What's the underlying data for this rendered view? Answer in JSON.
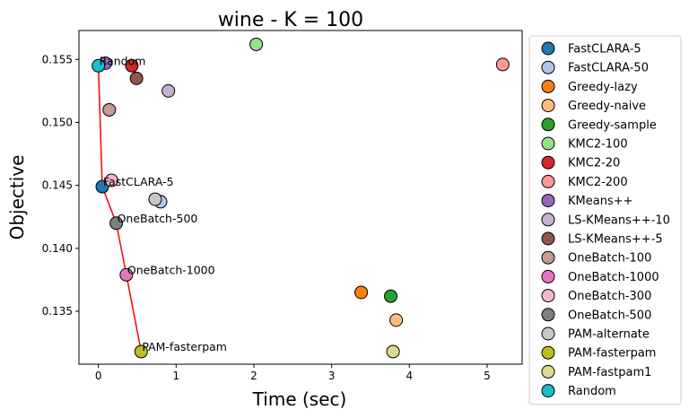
{
  "chart_data": {
    "type": "scatter",
    "title": "wine - K = 100",
    "xlabel": "Time (sec)",
    "ylabel": "Objective",
    "xlim": [
      -0.25,
      5.45
    ],
    "ylim": [
      0.1308,
      0.1573
    ],
    "xticks": [
      0,
      1,
      2,
      3,
      4,
      5
    ],
    "xtick_labels": [
      "0",
      "1",
      "2",
      "3",
      "4",
      "5"
    ],
    "yticks": [
      0.135,
      0.14,
      0.145,
      0.15,
      0.155
    ],
    "ytick_labels": [
      "0.135",
      "0.140",
      "0.145",
      "0.150",
      "0.155"
    ],
    "grid": false,
    "legend_position": "outside-right",
    "series": [
      {
        "name": "FastCLARA-5",
        "color": "#1f77b4",
        "points": [
          [
            0.05,
            0.1449
          ]
        ]
      },
      {
        "name": "FastCLARA-50",
        "color": "#aec7e8",
        "points": [
          [
            0.8,
            0.1437
          ]
        ]
      },
      {
        "name": "Greedy-lazy",
        "color": "#ff7f0e",
        "points": [
          [
            3.38,
            0.1365
          ]
        ]
      },
      {
        "name": "Greedy-naive",
        "color": "#ffbb78",
        "points": [
          [
            3.83,
            0.1343
          ]
        ]
      },
      {
        "name": "Greedy-sample",
        "color": "#2ca02c",
        "points": [
          [
            3.76,
            0.1362
          ]
        ]
      },
      {
        "name": "KMC2-100",
        "color": "#98df8a",
        "points": [
          [
            2.03,
            0.1562
          ]
        ]
      },
      {
        "name": "KMC2-20",
        "color": "#d62728",
        "points": [
          [
            0.43,
            0.1545
          ]
        ]
      },
      {
        "name": "KMC2-200",
        "color": "#ff9896",
        "points": [
          [
            5.2,
            0.1546
          ]
        ]
      },
      {
        "name": "KMeans++",
        "color": "#9467bd",
        "points": [
          [
            0.09,
            0.1547
          ]
        ]
      },
      {
        "name": "LS-KMeans++-10",
        "color": "#c5b0d5",
        "points": [
          [
            0.9,
            0.1525
          ]
        ]
      },
      {
        "name": "LS-KMeans++-5",
        "color": "#8c564b",
        "points": [
          [
            0.49,
            0.1535
          ]
        ]
      },
      {
        "name": "OneBatch-100",
        "color": "#c49c94",
        "points": [
          [
            0.14,
            0.151
          ]
        ]
      },
      {
        "name": "OneBatch-1000",
        "color": "#e377c2",
        "points": [
          [
            0.36,
            0.1379
          ]
        ]
      },
      {
        "name": "OneBatch-300",
        "color": "#f7b6d2",
        "points": [
          [
            0.17,
            0.1454
          ]
        ]
      },
      {
        "name": "OneBatch-500",
        "color": "#7f7f7f",
        "points": [
          [
            0.23,
            0.142
          ]
        ]
      },
      {
        "name": "PAM-alternate",
        "color": "#c7c7c7",
        "points": [
          [
            0.73,
            0.1439
          ]
        ]
      },
      {
        "name": "PAM-fasterpam",
        "color": "#bcbd22",
        "points": [
          [
            0.55,
            0.1318
          ]
        ]
      },
      {
        "name": "PAM-fastpam1",
        "color": "#dbdb8d",
        "points": [
          [
            3.79,
            0.1318
          ]
        ]
      },
      {
        "name": "Random",
        "color": "#17becf",
        "points": [
          [
            0.0,
            0.1545
          ]
        ]
      }
    ],
    "pareto_line": {
      "color": "#ff0000",
      "points": [
        [
          0.0,
          0.1545
        ],
        [
          0.05,
          0.1449
        ],
        [
          0.23,
          0.142
        ],
        [
          0.36,
          0.1379
        ],
        [
          0.55,
          0.1318
        ]
      ]
    },
    "annotations": [
      {
        "text": "Random",
        "x": 0.0,
        "y": 0.1545
      },
      {
        "text": "FastCLARA-5",
        "x": 0.05,
        "y": 0.1449
      },
      {
        "text": "OneBatch-500",
        "x": 0.23,
        "y": 0.142
      },
      {
        "text": "OneBatch-1000",
        "x": 0.36,
        "y": 0.1379
      },
      {
        "text": "PAM-fasterpam",
        "x": 0.55,
        "y": 0.1318
      }
    ]
  }
}
